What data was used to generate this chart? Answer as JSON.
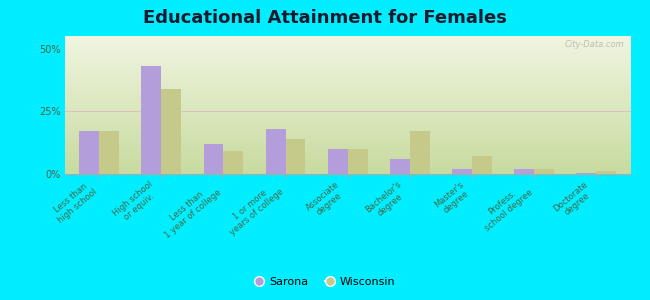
{
  "title": "Educational Attainment for Females",
  "categories": [
    "Less than\nhigh school",
    "High school\nor equiv.",
    "Less than\n1 year of college",
    "1 or more\nyears of college",
    "Associate\ndegree",
    "Bachelor's\ndegree",
    "Master's\ndegree",
    "Profess.\nschool degree",
    "Doctorate\ndegree"
  ],
  "sarona": [
    17.0,
    43.0,
    12.0,
    18.0,
    10.0,
    6.0,
    2.0,
    2.0,
    0.2
  ],
  "wisconsin": [
    17.0,
    34.0,
    9.0,
    14.0,
    10.0,
    17.0,
    7.0,
    2.0,
    1.0
  ],
  "sarona_color": "#b39ddb",
  "wisconsin_color": "#c5c98a",
  "background_outer": "#00eeff",
  "yticks": [
    0,
    25,
    50
  ],
  "ylim": [
    0,
    55
  ],
  "title_fontsize": 13,
  "watermark": "City-Data.com"
}
